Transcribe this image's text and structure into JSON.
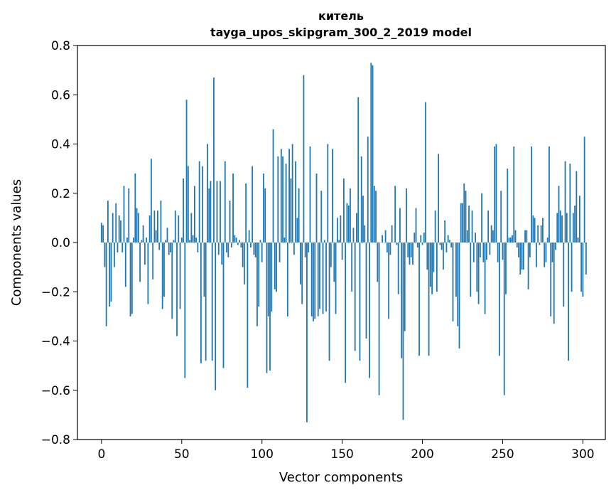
{
  "chart_data": {
    "type": "bar",
    "title": "китель",
    "subtitle": "tayga_upos_skipgram_300_2_2019 model",
    "xlabel": "Vector components",
    "ylabel": "Components values",
    "xlim": [
      -15,
      314
    ],
    "ylim": [
      -0.8,
      0.8
    ],
    "xticks": [
      0,
      50,
      100,
      150,
      200,
      250,
      300
    ],
    "yticks": [
      -0.8,
      -0.6,
      -0.4,
      -0.2,
      0.0,
      0.2,
      0.4,
      0.6,
      0.8
    ],
    "xtick_labels": [
      "0",
      "50",
      "100",
      "150",
      "200",
      "250",
      "300"
    ],
    "ytick_labels": [
      "−0.8",
      "−0.6",
      "−0.4",
      "−0.2",
      "0.0",
      "0.2",
      "0.4",
      "0.6",
      "0.8"
    ],
    "grid": false,
    "bar_color": "#1f77b4",
    "values": [
      0.08,
      0.07,
      -0.1,
      -0.34,
      0.17,
      -0.26,
      -0.24,
      0.12,
      -0.1,
      0.16,
      -0.04,
      0.11,
      0.09,
      -0.04,
      0.23,
      -0.18,
      0.02,
      0.22,
      -0.3,
      -0.29,
      0.02,
      0.28,
      0.14,
      0.12,
      -0.16,
      0.01,
      0.07,
      -0.09,
      0.02,
      -0.25,
      0.11,
      0.34,
      -0.15,
      0.13,
      0.05,
      0.13,
      -0.03,
      0.17,
      -0.27,
      -0.22,
      0.01,
      0.06,
      -0.05,
      -0.04,
      -0.31,
      0.01,
      0.13,
      -0.38,
      0.11,
      -0.27,
      0.02,
      0.26,
      -0.55,
      0.58,
      0.31,
      0.01,
      0.12,
      0.03,
      0.23,
      0.02,
      -0.04,
      0.33,
      -0.49,
      0.31,
      -0.22,
      -0.48,
      0.4,
      0.22,
      0.25,
      -0.48,
      0.67,
      -0.6,
      0.25,
      -0.05,
      0.25,
      -0.09,
      -0.51,
      0.33,
      -0.04,
      -0.06,
      0.17,
      -0.02,
      0.28,
      0.03,
      0.02,
      -0.01,
      0.01,
      -0.02,
      -0.1,
      -0.17,
      0.24,
      -0.59,
      0.05,
      -0.02,
      0.31,
      -0.05,
      -0.06,
      -0.34,
      -0.26,
      0.01,
      -0.08,
      0.28,
      0.22,
      -0.53,
      -0.3,
      -0.52,
      -0.28,
      0.46,
      -0.19,
      -0.2,
      0.35,
      -0.08,
      0.38,
      0.35,
      0.02,
      0.32,
      -0.3,
      0.38,
      0.26,
      0.4,
      -0.05,
      0.33,
      0.1,
      0.22,
      -0.17,
      -0.25,
      0.68,
      -0.06,
      -0.73,
      -0.04,
      0.39,
      -0.3,
      -0.32,
      -0.31,
      0.28,
      -0.3,
      -0.27,
      0.21,
      -0.29,
      0.01,
      -0.28,
      0.4,
      -0.48,
      -0.1,
      0.38,
      -0.16,
      -0.29,
      0.1,
      0.01,
      0.11,
      -0.07,
      0.26,
      -0.57,
      0.16,
      0.15,
      0.22,
      -0.2,
      0.06,
      -0.44,
      0.12,
      0.59,
      -0.48,
      0.35,
      0.19,
      0.07,
      -0.39,
      0.43,
      -0.55,
      0.73,
      0.72,
      0.23,
      0.21,
      -0.16,
      -0.62,
      0.0,
      0.03,
      0.0,
      0.05,
      -0.04,
      -0.31,
      -0.05,
      0.07,
      0.0,
      0.23,
      -0.01,
      -0.21,
      0.14,
      -0.47,
      -0.72,
      -0.36,
      0.22,
      -0.06,
      -0.09,
      -0.06,
      -0.09,
      0.04,
      0.14,
      -0.02,
      -0.46,
      0.03,
      -0.01,
      0.04,
      0.57,
      -0.11,
      -0.46,
      -0.18,
      -0.21,
      -0.12,
      0.13,
      -0.2,
      0.36,
      -0.01,
      -0.03,
      -0.11,
      0.09,
      -0.04,
      0.03,
      0.01,
      -0.02,
      -0.32,
      0.0,
      -0.22,
      -0.34,
      -0.43,
      0.16,
      0.16,
      0.24,
      0.21,
      0.05,
      0.15,
      -0.22,
      0.13,
      -0.08,
      0.04,
      -0.2,
      -0.25,
      -0.06,
      0.2,
      -0.08,
      -0.29,
      -0.07,
      0.13,
      -0.05,
      0.07,
      0.05,
      0.39,
      0.4,
      -0.08,
      -0.46,
      0.21,
      -0.07,
      -0.62,
      -0.21,
      0.3,
      0.02,
      0.02,
      0.03,
      0.39,
      0.05,
      -0.02,
      -0.06,
      -0.13,
      -0.11,
      -0.11,
      0.05,
      0.05,
      -0.19,
      -0.06,
      0.39,
      0.11,
      0.1,
      -0.1,
      0.07,
      -0.01,
      0.07,
      0.1,
      -0.1,
      -0.08,
      0.02,
      0.39,
      -0.3,
      -0.08,
      -0.33,
      -0.03,
      0.12,
      0.23,
      0.13,
      0.11,
      -0.26,
      0.33,
      0.12,
      -0.48,
      0.32,
      -0.2,
      0.12,
      0.15,
      0.29,
      0.02,
      0.19,
      -0.2,
      -0.22,
      0.43,
      -0.13
    ]
  }
}
